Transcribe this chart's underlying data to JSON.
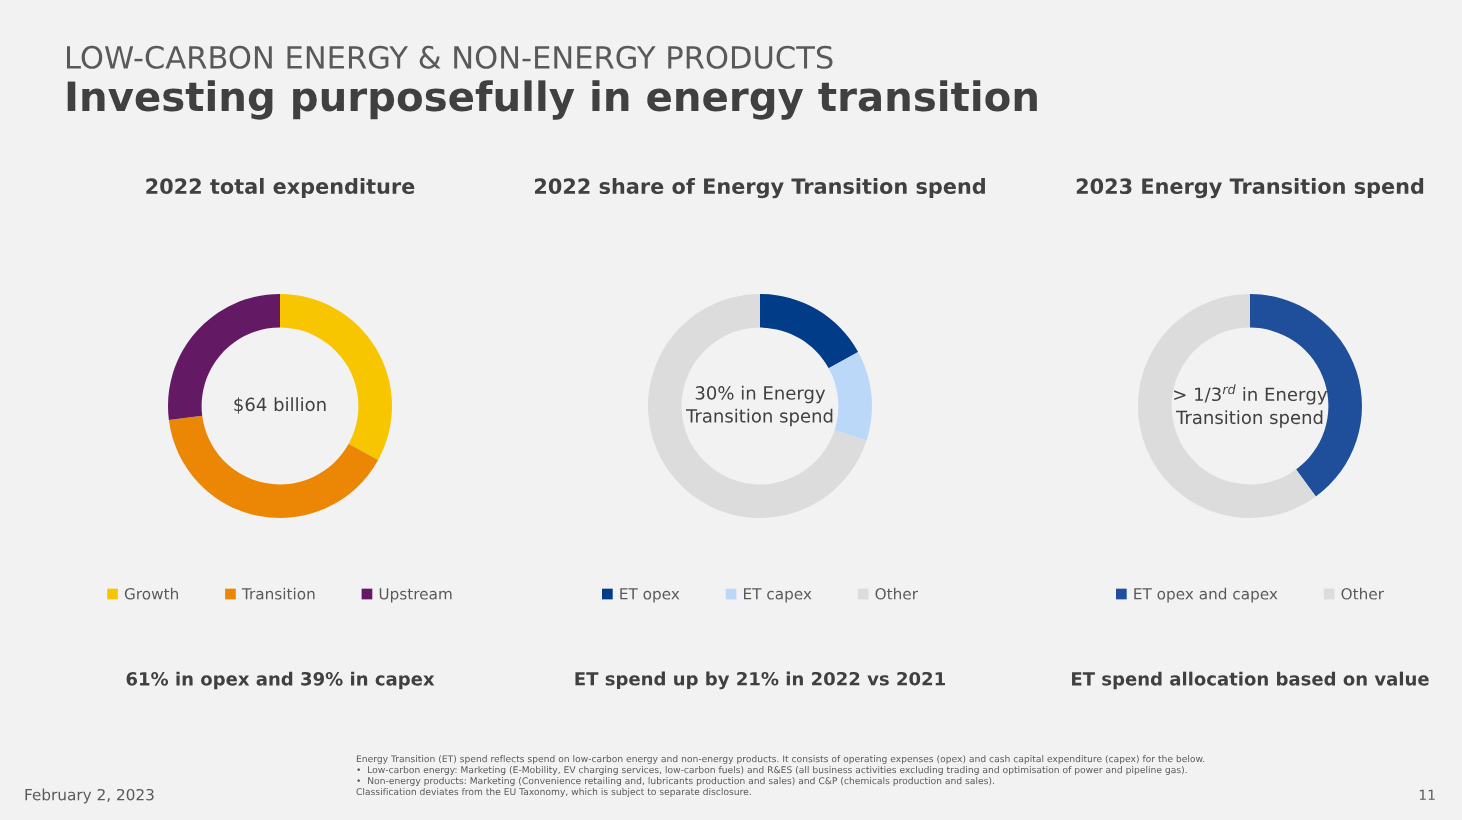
{
  "chart_data": [
    {
      "type": "other",
      "title": "LOW-CARBON ENERGY & NON-ENERGY PRODUCTS",
      "subtitle": "Investing purposefully in energy transition",
      "annotations": [
        "Energy Transition (ET) spend reflects spend on low-carbon energy and non-energy products. It consists of operating expenses (opex) and cash capital expenditure (capex) for the below.\n•  Low-carbon energy: Marketing (E-Mobility, EV charging services, low-carbon fuels) and R&ES (all business activities excluding trading and optimisation of power and pipeline gas).\n•  Non-energy products: Marketing (Convenience retailing and, lubricants production and sales) and C&P (chemicals production and sales).\nClassification deviates from the EU Taxonomy, which is subject to separate disclosure.",
        "February 2, 2023",
        "11"
      ]
    },
    {
      "type": "donut",
      "title": "2022 total expenditure",
      "categories": [
        "Growth",
        "Transition",
        "Upstream"
      ],
      "values": [
        33,
        40,
        27
      ],
      "colors": [
        "#f7c600",
        "#eb8705",
        "#641964"
      ],
      "legend": "bottom",
      "annotations": [
        "$64 billion",
        "61% in opex and 39% in capex"
      ]
    },
    {
      "type": "donut",
      "title": "2022 share of Energy Transition spend",
      "categories": [
        "ET opex",
        "ET capex",
        "Other"
      ],
      "values": [
        17,
        13,
        70
      ],
      "colors": [
        "#003c88",
        "#bcd8f8",
        "#dcdcdc"
      ],
      "legend": "bottom",
      "annotations": [
        "30% in Energy\nTransition spend",
        "ET spend up by 21% in 2022 vs 2021"
      ]
    },
    {
      "type": "donut",
      "title": "2023 Energy Transition spend",
      "categories": [
        "ET opex and capex",
        "Other"
      ],
      "values": [
        40,
        60
      ],
      "colors": [
        "#1f4f9a",
        "#dcdcdc"
      ],
      "legend": "bottom",
      "annotations": [
        "> 1/3$^{rd}$ in Energy\nTransition spend",
        "ET spend allocation based on value"
      ]
    }
  ]
}
